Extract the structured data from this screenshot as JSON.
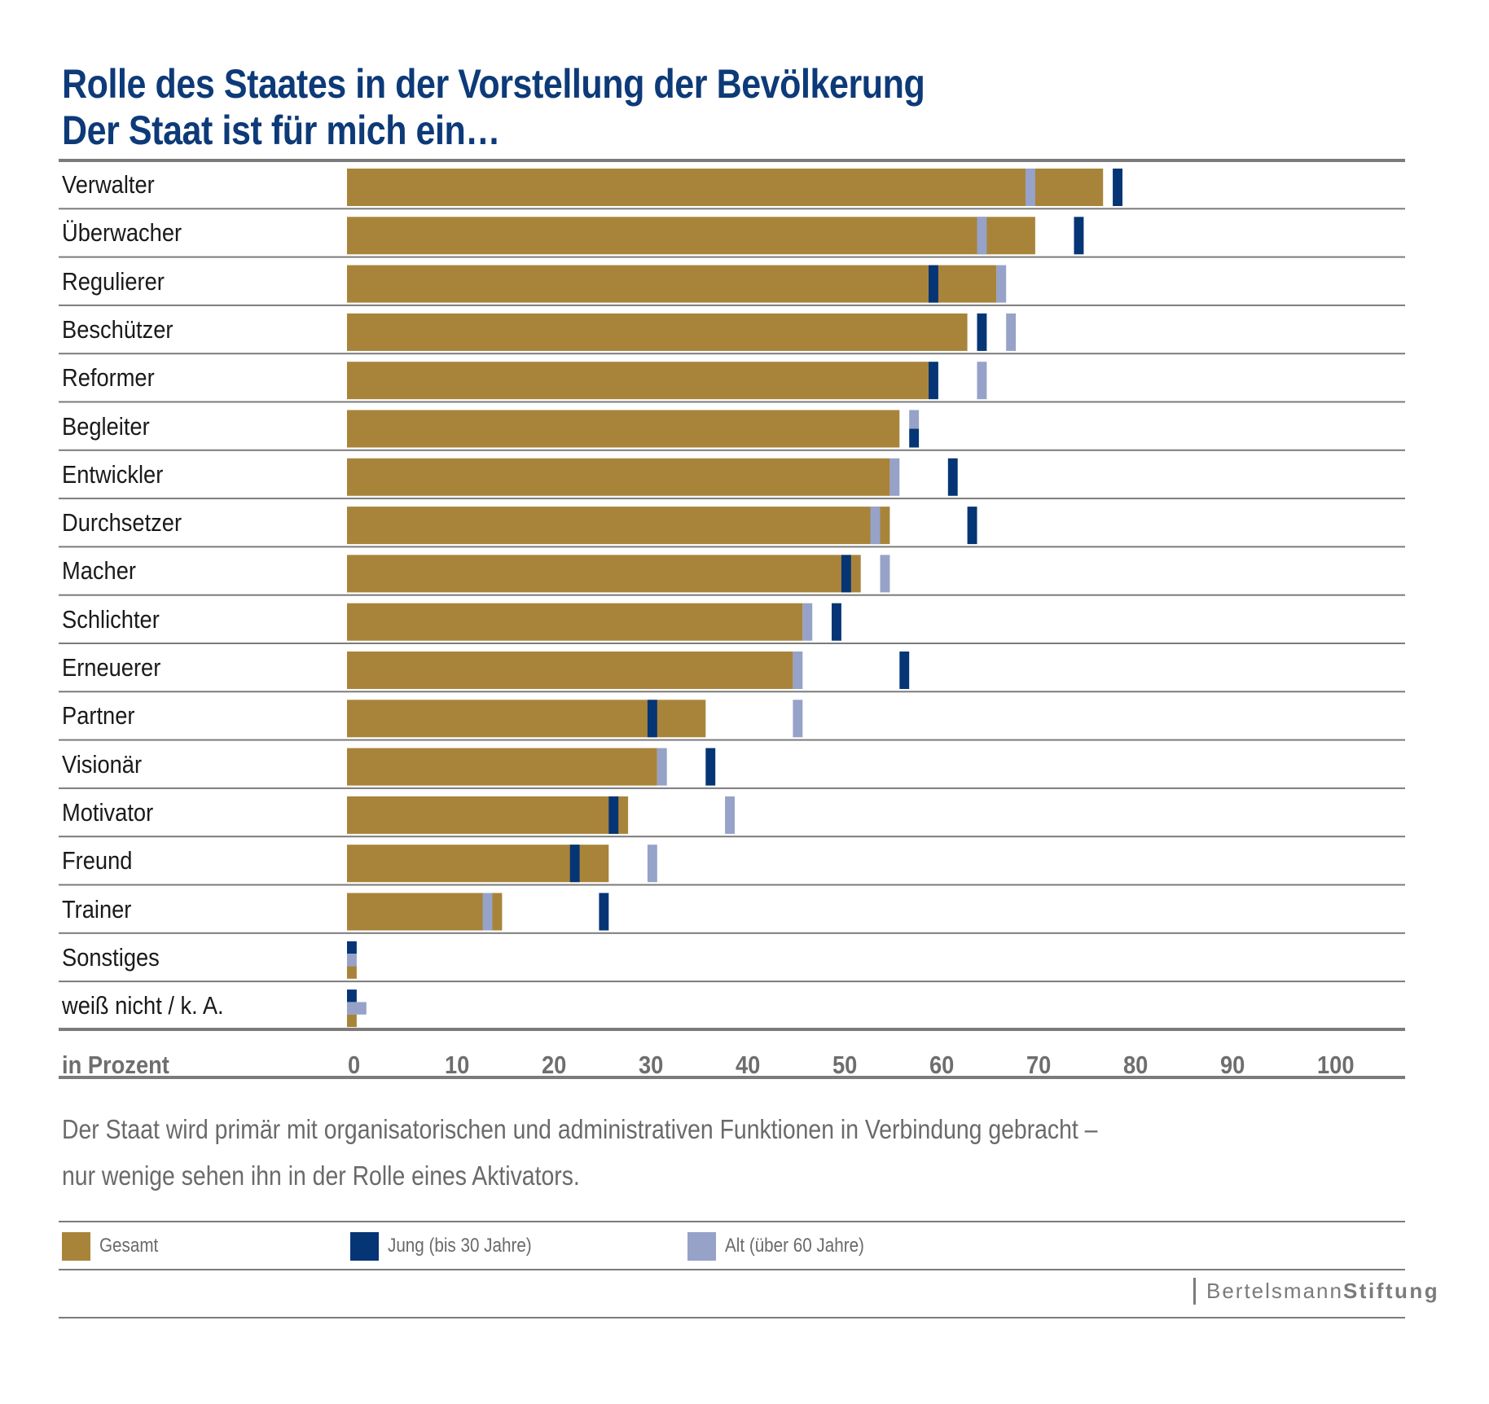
{
  "title": {
    "line1": "Rolle des Staates in der Vorstellung der Bevölkerung",
    "line2": "Der Staat ist für mich ein…"
  },
  "caption": {
    "line1": "Der Staat wird primär mit organisatorischen und administrativen Funktionen in Verbindung gebracht –",
    "line2": "nur wenige sehen ihn in der Rolle eines Aktivators."
  },
  "legend": [
    {
      "label": "Gesamt",
      "color": "#a8843a"
    },
    {
      "label": "Jung (bis 30 Jahre)",
      "color": "#063575"
    },
    {
      "label": "Alt (über 60  Jahre)",
      "color": "#96a2c8"
    }
  ],
  "logo": {
    "part1": "Bertelsmann",
    "part2": "Stiftung"
  },
  "chart_data": {
    "type": "bar",
    "orientation": "horizontal",
    "title": "Rolle des Staates in der Vorstellung der Bevölkerung – Der Staat ist für mich ein…",
    "xlabel": "in Prozent",
    "ylabel": "",
    "xlim": [
      0,
      100
    ],
    "xticks": [
      "0",
      "10",
      "20",
      "30",
      "40",
      "50",
      "60",
      "70",
      "80",
      "90",
      "100"
    ],
    "grid": false,
    "legend_position": "bottom",
    "categories": [
      "Verwalter",
      "Überwacher",
      "Regulierer",
      "Beschützer",
      "Reformer",
      "Begleiter",
      "Entwickler",
      "Durchsetzer",
      "Macher",
      "Schlichter",
      "Erneuerer",
      "Partner",
      "Visionär",
      "Motivator",
      "Freund",
      "Trainer",
      "Sonstiges",
      "weiß nicht / k. A."
    ],
    "series": [
      {
        "name": "Gesamt",
        "style": "bar",
        "color": "#a8843a",
        "values": [
          78,
          71,
          67,
          64,
          60,
          57,
          56,
          56,
          53,
          47,
          46,
          37,
          32,
          29,
          27,
          16,
          1,
          1
        ]
      },
      {
        "name": "Jung (bis 30 Jahre)",
        "style": "marker",
        "color": "#063575",
        "values": [
          80,
          76,
          61,
          66,
          61,
          59,
          63,
          65,
          52,
          51,
          58,
          32,
          38,
          28,
          24,
          27,
          1,
          1
        ]
      },
      {
        "name": "Alt (über 60  Jahre)",
        "style": "marker",
        "color": "#96a2c8",
        "values": [
          71,
          66,
          68,
          69,
          66,
          59,
          57,
          55,
          56,
          48,
          47,
          47,
          33,
          40,
          32,
          15,
          1,
          2
        ]
      }
    ]
  }
}
